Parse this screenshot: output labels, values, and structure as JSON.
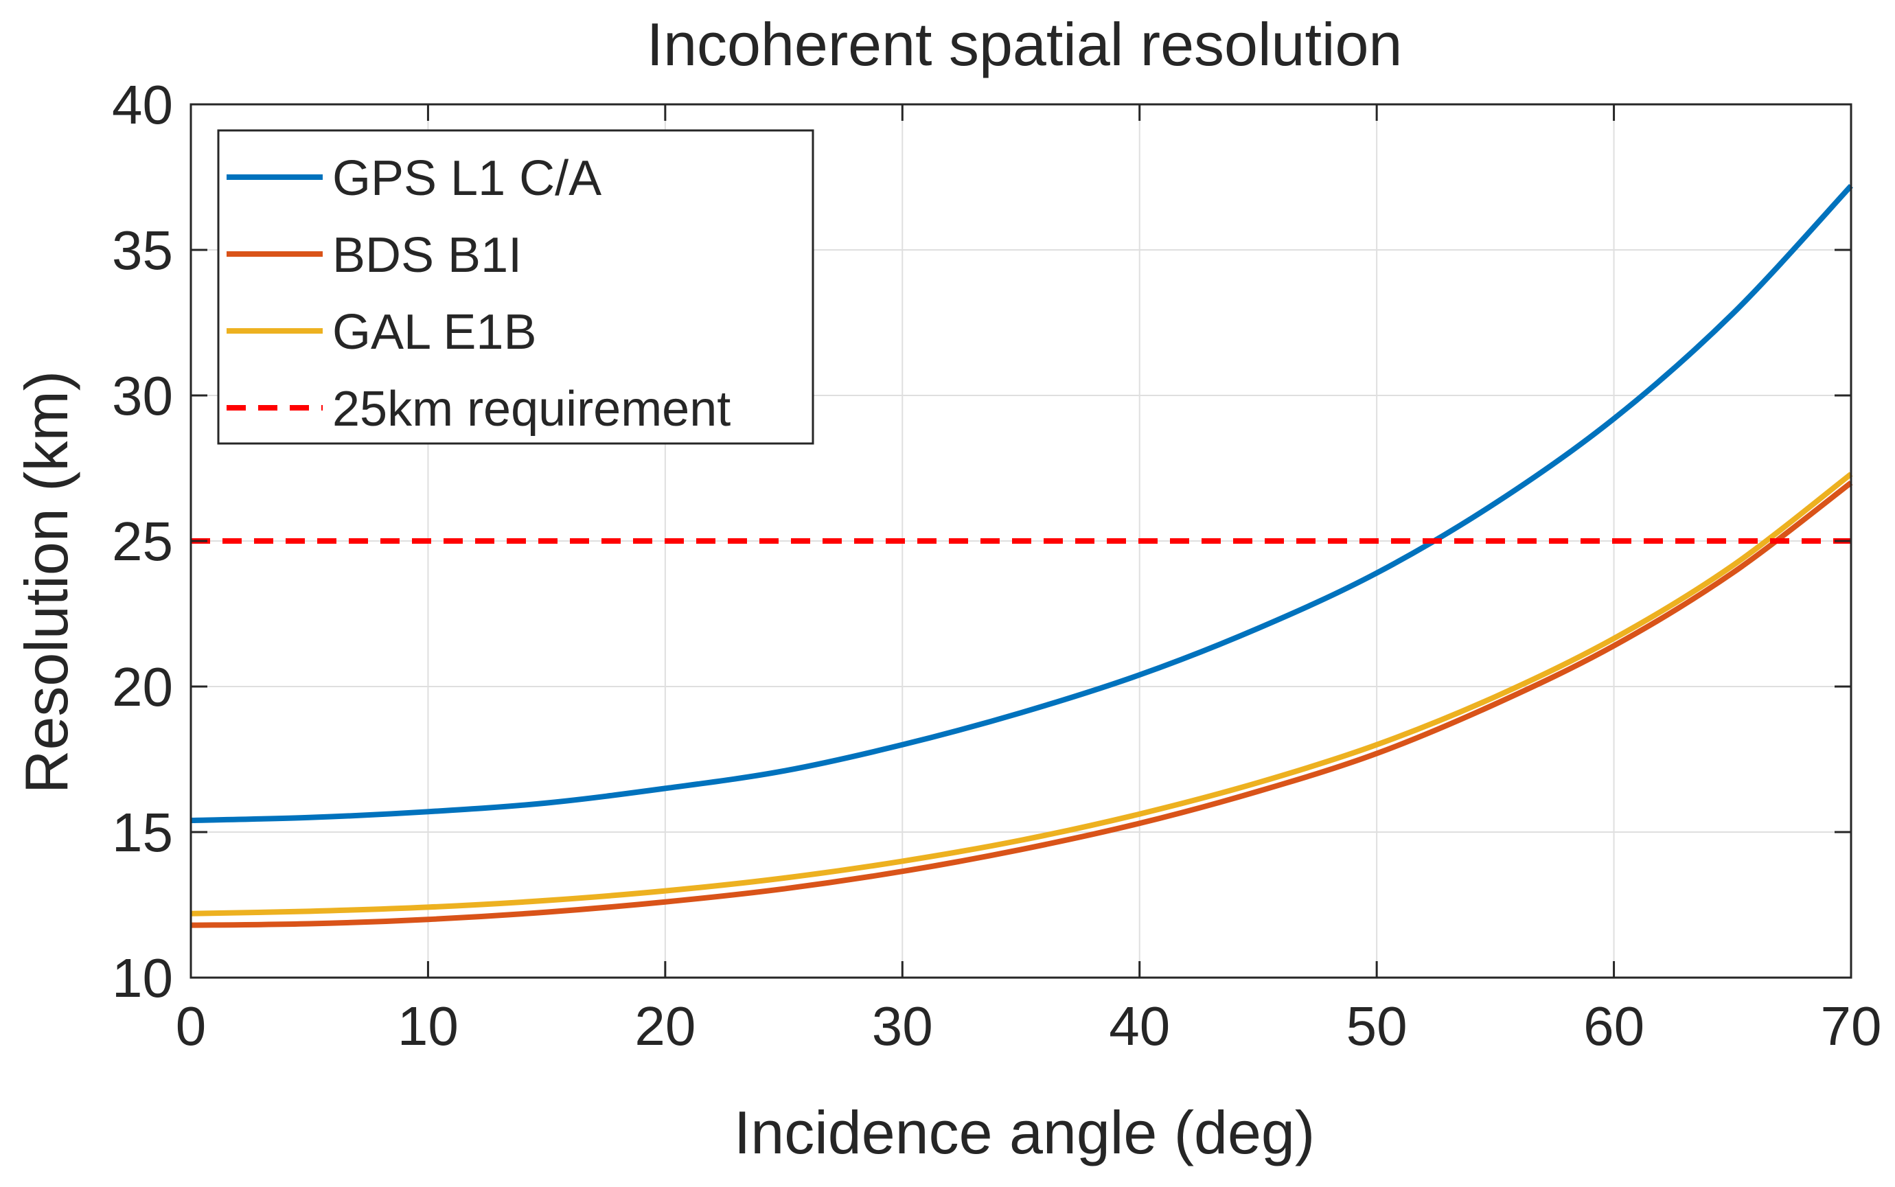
{
  "chart_data": {
    "type": "line",
    "title": "Incoherent spatial resolution",
    "xlabel": "Incidence angle (deg)",
    "ylabel": "Resolution (km)",
    "xlim": [
      0,
      70
    ],
    "ylim": [
      10,
      40
    ],
    "xticks": [
      0,
      10,
      20,
      30,
      40,
      50,
      60,
      70
    ],
    "yticks": [
      10,
      15,
      20,
      25,
      30,
      35,
      40
    ],
    "grid": true,
    "legend_position": "top-left",
    "x": [
      0,
      5,
      10,
      15,
      20,
      25,
      30,
      35,
      40,
      45,
      50,
      55,
      60,
      65,
      70
    ],
    "series": [
      {
        "name": "GPS L1 C/A",
        "color": "#0072BD",
        "style": "solid",
        "values": [
          15.4,
          15.5,
          15.7,
          16.0,
          16.5,
          17.1,
          18.0,
          19.1,
          20.4,
          22.0,
          23.9,
          26.3,
          29.2,
          32.8,
          37.2
        ]
      },
      {
        "name": "BDS B1I",
        "color": "#D95319",
        "style": "solid",
        "values": [
          11.8,
          11.85,
          12.0,
          12.25,
          12.6,
          13.05,
          13.65,
          14.4,
          15.3,
          16.4,
          17.7,
          19.4,
          21.4,
          23.9,
          27.0
        ]
      },
      {
        "name": "GAL E1B",
        "color": "#EDB120",
        "style": "solid",
        "values": [
          12.2,
          12.28,
          12.42,
          12.65,
          12.98,
          13.42,
          14.0,
          14.72,
          15.62,
          16.7,
          18.0,
          19.65,
          21.65,
          24.15,
          27.3
        ]
      },
      {
        "name": "25km requirement",
        "color": "#FF0000",
        "style": "dashed",
        "values": [
          25,
          25,
          25,
          25,
          25,
          25,
          25,
          25,
          25,
          25,
          25,
          25,
          25,
          25,
          25
        ]
      }
    ]
  }
}
